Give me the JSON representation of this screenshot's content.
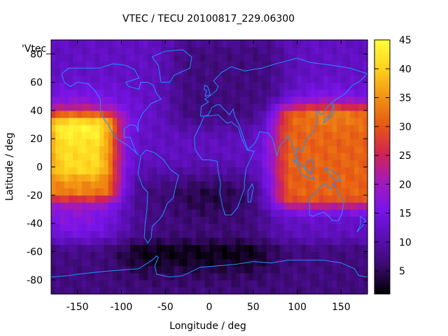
{
  "chart_data": {
    "type": "heatmap",
    "title": "VTEC / TECU 20100817_229.06300",
    "xlabel": "Longitude / deg",
    "ylabel": "Latitude / deg",
    "legend_entry": "'Vtec_",
    "xlim": [
      -180,
      180
    ],
    "ylim": [
      -90,
      90
    ],
    "x_ticks": [
      -150,
      -100,
      -50,
      0,
      50,
      100,
      150
    ],
    "y_ticks": [
      -80,
      -60,
      -40,
      -20,
      0,
      20,
      40,
      60,
      80
    ],
    "x_tick_labels": [
      "-150",
      "-100",
      "-50",
      "0",
      "50",
      "100",
      "150"
    ],
    "y_tick_labels": [
      "-80",
      "-60",
      "-40",
      "-20",
      "0",
      "20",
      "40",
      "60",
      "80"
    ],
    "colorbar": {
      "range": [
        1,
        45
      ],
      "ticks": [
        5,
        10,
        15,
        20,
        25,
        30,
        35,
        40,
        45
      ],
      "tick_labels": [
        "5",
        "10",
        "15",
        "20",
        "25",
        "30",
        "35",
        "40",
        "45"
      ],
      "colormap": [
        "#000000",
        "#3a0a6e",
        "#5a0fb4",
        "#7a14ea",
        "#a31ab8",
        "#d1254f",
        "#e65a14",
        "#f29413",
        "#ffd21e",
        "#ffff3c"
      ]
    },
    "coastline_color": "#1e90ff",
    "grid_step_deg": 5,
    "tec_features": [
      {
        "region": "background",
        "value": 12
      },
      {
        "region": "pacific equatorial band",
        "lon": [
          -180,
          -120
        ],
        "lat": [
          -15,
          30
        ],
        "value": 33
      },
      {
        "region": "pacific peak",
        "lon": [
          -165,
          -130
        ],
        "lat": [
          0,
          25
        ],
        "value": 41
      },
      {
        "region": "asia equatorial band",
        "lon": [
          95,
          180
        ],
        "lat": [
          -20,
          35
        ],
        "value": 31
      },
      {
        "region": "atlantic south low",
        "lon": [
          -70,
          40
        ],
        "lat": [
          -60,
          -20
        ],
        "value": 7
      },
      {
        "region": "polar south",
        "lon": [
          -180,
          180
        ],
        "lat": [
          -90,
          -60
        ],
        "value": 6
      },
      {
        "region": "europe night low",
        "lon": [
          -20,
          60
        ],
        "lat": [
          40,
          80
        ],
        "value": 6
      }
    ]
  }
}
